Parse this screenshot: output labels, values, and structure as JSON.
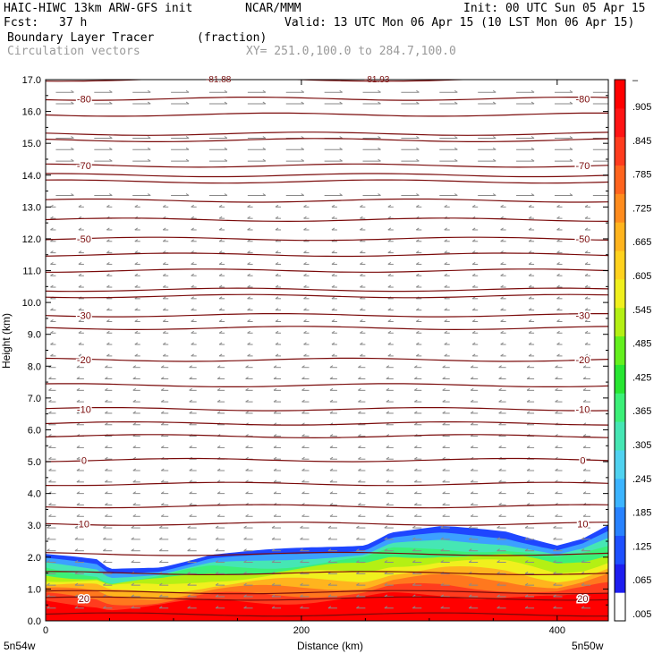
{
  "header": {
    "model": "HAIC-HIWC 13km ARW-GFS init",
    "org": "NCAR/MMM",
    "init": "Init: 00 UTC Sun 05 Apr 15",
    "fcst_label": "Fcst:",
    "fcst_value": "37 h",
    "valid": "Valid: 13 UTC Mon 06 Apr 15 (10 LST Mon 06 Apr 15)",
    "field": "Boundary Layer Tracer",
    "units": "(fraction)",
    "vectors": "Circulation vectors",
    "xsect": "XY= 251.0,100.0 to 284.7,100.0"
  },
  "colorbar": {
    "labels": [
      ".005",
      ".065",
      ".125",
      ".185",
      ".245",
      ".305",
      ".365",
      ".425",
      ".485",
      ".545",
      ".605",
      ".665",
      ".725",
      ".785",
      ".845",
      ".905",
      "–"
    ],
    "colors": [
      "#ffffff",
      "#1e1ef0",
      "#1e50ff",
      "#2882ff",
      "#3cb4ff",
      "#50d2f0",
      "#46e6b4",
      "#3cf078",
      "#28e632",
      "#64f01e",
      "#b4f014",
      "#f0f01e",
      "#ffd21e",
      "#ffb41e",
      "#ff8c1e",
      "#ff641e",
      "#ff3c1e",
      "#ff1414",
      "#ff0000"
    ]
  },
  "chart_data": {
    "type": "heatmap",
    "title": "Boundary Layer Tracer",
    "ylabel": "Height (km)",
    "xlabel": "Distance (km)",
    "xlim": [
      0,
      440
    ],
    "ylim": [
      0,
      17
    ],
    "x_ticks": [
      {
        "value": 0,
        "label": "0"
      },
      {
        "value": 200,
        "label": "200"
      },
      {
        "value": 400,
        "label": "400"
      }
    ],
    "y_ticks": [
      "0.0",
      "1.0",
      "2.0",
      "3.0",
      "4.0",
      "5.0",
      "6.0",
      "7.0",
      "8.0",
      "9.0",
      "10.0",
      "11.0",
      "12.0",
      "13.0",
      "14.0",
      "15.0",
      "16.0",
      "17.0"
    ],
    "x_endpoints": [
      "5n54w",
      "5n50w"
    ],
    "top_annotations": [
      "-81.88",
      "-81.93"
    ],
    "tracer_top_km": {
      "x": [
        0,
        40,
        50,
        90,
        100,
        130,
        170,
        250,
        270,
        310,
        360,
        400,
        420,
        440
      ],
      "top": [
        2.1,
        1.9,
        1.6,
        1.7,
        1.8,
        2.1,
        2.2,
        2.4,
        2.8,
        2.95,
        2.8,
        2.4,
        2.6,
        3.0
      ]
    },
    "isotherms": [
      {
        "label": "-80",
        "y": 16.4,
        "show_left": true,
        "show_right": true
      },
      {
        "label": "-70",
        "y": 14.3,
        "show_left": true,
        "show_right": true
      },
      {
        "label": "-50",
        "y": 12.0,
        "show_left": true,
        "show_right": true
      },
      {
        "label": "-30",
        "y": 9.6,
        "show_left": true,
        "show_right": true
      },
      {
        "label": "-20",
        "y": 8.2,
        "show_left": true,
        "show_right": true
      },
      {
        "label": "-10",
        "y": 6.65,
        "show_left": true,
        "show_right": true
      },
      {
        "label": "0",
        "y": 5.05,
        "show_left": true,
        "show_right": true
      },
      {
        "label": "10",
        "y": 3.05,
        "show_left": true,
        "show_right": true
      },
      {
        "label": "20",
        "y": 0.7,
        "show_left": true,
        "show_right": true
      }
    ],
    "extra_contours_km": [
      17.0,
      15.9,
      15.3,
      15.1,
      14.0,
      13.8,
      13.2,
      12.6,
      11.5,
      11.0,
      10.4,
      10.2,
      9.2,
      7.4,
      6.2,
      5.8,
      4.3,
      3.6,
      2.1,
      1.5,
      0.9,
      0.2
    ],
    "colorbar_levels": [
      ".005",
      ".065",
      ".125",
      ".185",
      ".245",
      ".305",
      ".365",
      ".425",
      ".485",
      ".545",
      ".605",
      ".665",
      ".725",
      ".785",
      ".845",
      ".905"
    ]
  }
}
